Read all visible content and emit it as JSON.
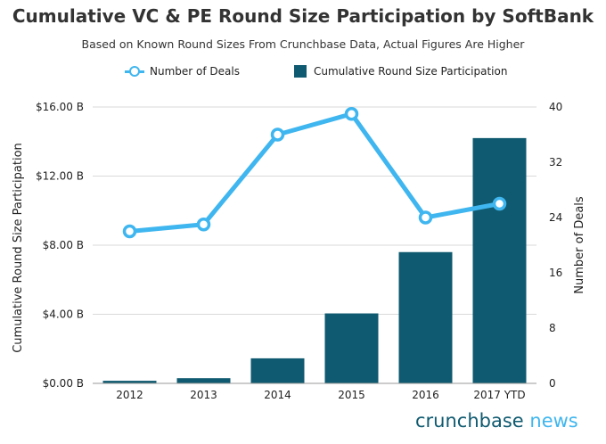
{
  "title": "Cumulative VC & PE Round Size Participation by SoftBank",
  "subtitle": "Based on Known Round Sizes From Crunchbase Data, Actual Figures Are Higher",
  "legend": {
    "line_label": "Number of Deals",
    "bar_label": "Cumulative Round Size Participation"
  },
  "brand": {
    "part1": "crunchbase",
    "part2": " news"
  },
  "colors": {
    "bar": "#0f5a70",
    "line": "#3fb6ef",
    "grid": "#d9d9d9"
  },
  "chart_data": {
    "type": "bar",
    "categories": [
      "2012",
      "2013",
      "2014",
      "2015",
      "2016",
      "2017 YTD"
    ],
    "series": [
      {
        "name": "Cumulative Round Size Participation",
        "type": "bar",
        "axis": "left",
        "values": [
          0.15,
          0.3,
          1.45,
          4.05,
          7.6,
          14.2
        ]
      },
      {
        "name": "Number of Deals",
        "type": "line",
        "axis": "right",
        "values": [
          22,
          23,
          36,
          39,
          24,
          26
        ]
      }
    ],
    "ylabel": "Cumulative Round Size Participation",
    "y2label": "Number of Deals",
    "ylim": [
      0,
      16
    ],
    "y2lim": [
      0,
      40
    ],
    "yticks": [
      "$0.00 B",
      "$4.00 B",
      "$8.00 B",
      "$12.00 B",
      "$16.00 B"
    ],
    "y2ticks": [
      "0",
      "8",
      "16",
      "24",
      "32",
      "40"
    ],
    "grid": true,
    "legend_position": "top-center"
  }
}
